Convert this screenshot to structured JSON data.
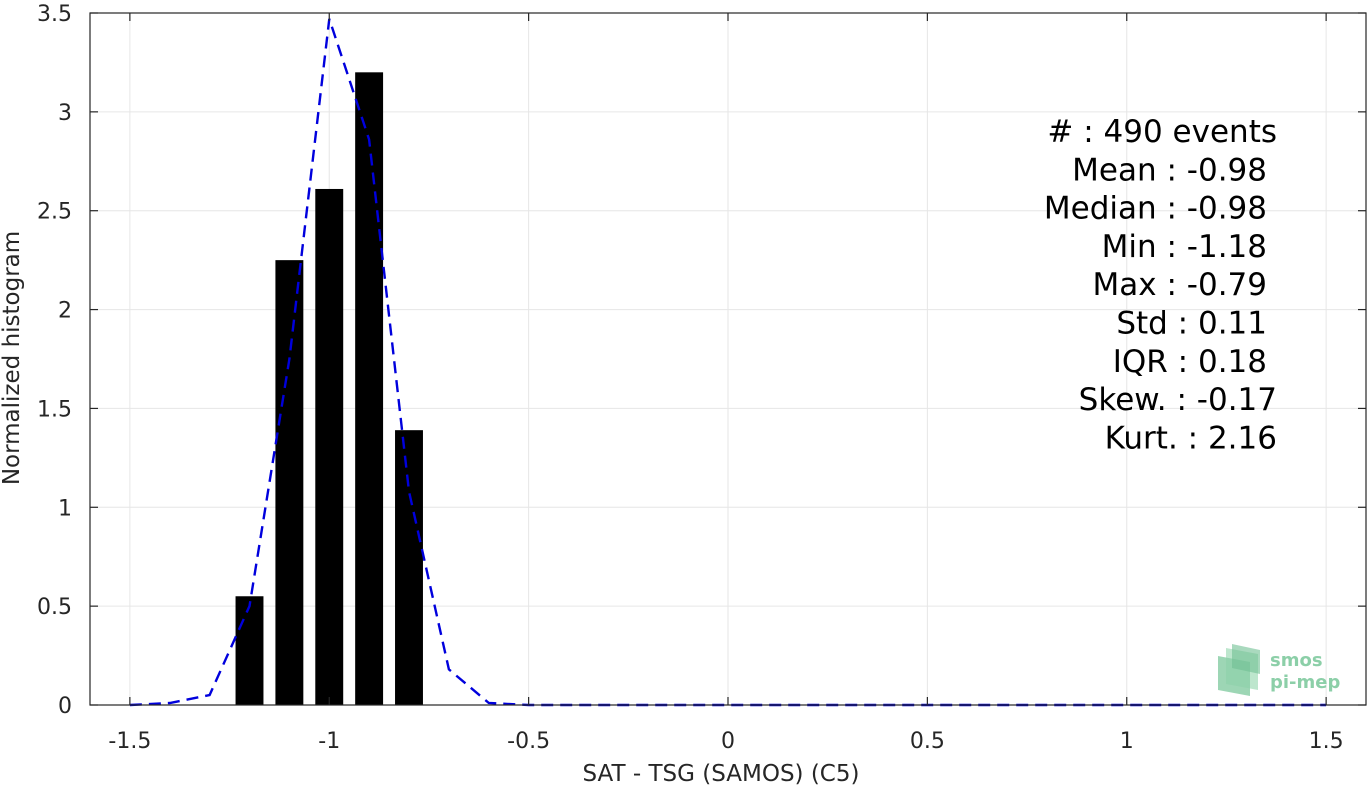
{
  "chart_data": {
    "type": "bar",
    "xlabel": "SAT - TSG (SAMOS) (C5)",
    "ylabel": "Normalized histogram",
    "xlim": [
      -1.6,
      1.6
    ],
    "ylim": [
      0,
      3.5
    ],
    "xticks": [
      -1.5,
      -1,
      -0.5,
      0,
      0.5,
      1,
      1.5
    ],
    "xtick_labels": [
      "-1.5",
      "-1",
      "-0.5",
      "0",
      "0.5",
      "1",
      "1.5"
    ],
    "yticks": [
      0,
      0.5,
      1,
      1.5,
      2,
      2.5,
      3,
      3.5
    ],
    "ytick_labels": [
      "0",
      "0.5",
      "1",
      "1.5",
      "2",
      "2.5",
      "3",
      "3.5"
    ],
    "grid": true,
    "bar_width": 0.07,
    "bars": {
      "x": [
        -1.2,
        -1.1,
        -1.0,
        -0.9,
        -0.8
      ],
      "values": [
        0.55,
        2.25,
        2.61,
        3.2,
        1.39
      ],
      "color": "#000000"
    },
    "fit_curve": {
      "style": "dashed",
      "color": "#0000dd",
      "x": [
        -1.5,
        -1.4,
        -1.3,
        -1.2,
        -1.1,
        -1.0,
        -0.9,
        -0.8,
        -0.7,
        -0.6,
        -0.5,
        -0.4,
        -0.3,
        -0.2,
        -0.1,
        0,
        0.1,
        0.2,
        0.3,
        0.4,
        0.5,
        0.6,
        0.7,
        0.8,
        0.9,
        1.0,
        1.1,
        1.2,
        1.3,
        1.4,
        1.5
      ],
      "y": [
        0.0,
        0.01,
        0.05,
        0.5,
        1.75,
        3.47,
        2.86,
        1.08,
        0.18,
        0.01,
        0.0,
        0.0,
        0.0,
        0.0,
        0.0,
        0.0,
        0.0,
        0.0,
        0.0,
        0.0,
        0.0,
        0.0,
        0.0,
        0.0,
        0.0,
        0.0,
        0.0,
        0.0,
        0.0,
        0.0,
        0.0
      ]
    },
    "stats": [
      "#  : 490 events",
      "Mean : -0.98",
      "Median : -0.98",
      "Min : -1.18",
      "Max : -0.79",
      "Std : 0.11",
      "IQR : 0.18",
      "Skew. : -0.17",
      "Kurt. : 2.16"
    ]
  },
  "logo": {
    "line1": "smos",
    "line2": "pi-mep",
    "color": "#8ccfa8"
  }
}
